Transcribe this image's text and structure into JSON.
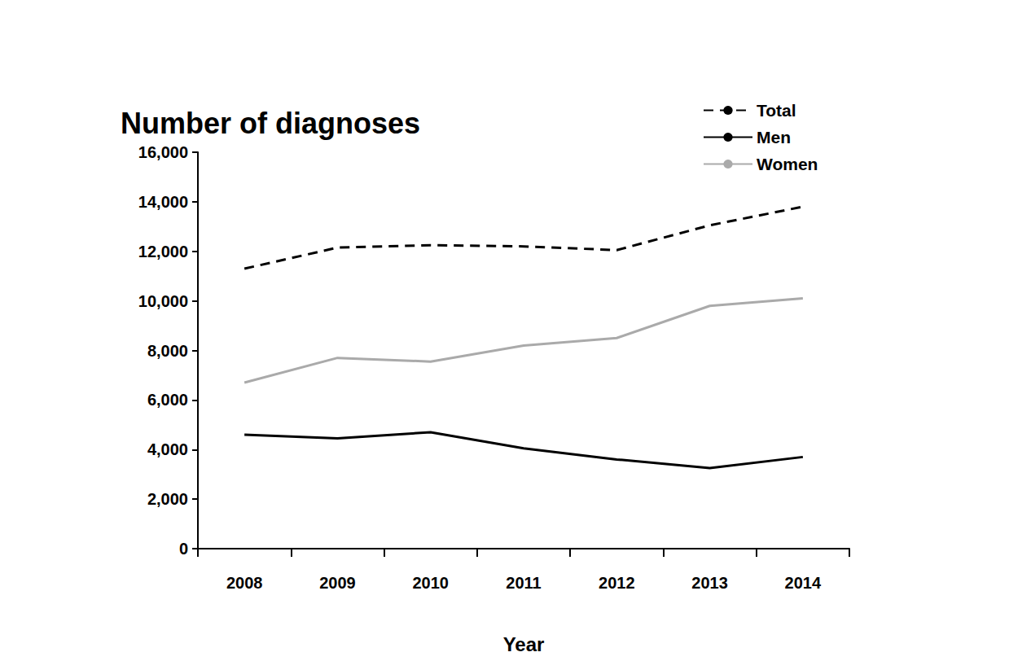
{
  "chart_data": {
    "type": "line",
    "ylabel": "Number of diagnoses",
    "xlabel": "Year",
    "categories": [
      "2008",
      "2009",
      "2010",
      "2011",
      "2012",
      "2013",
      "2014"
    ],
    "series": [
      {
        "name": "Total",
        "color": "#000000",
        "line_style": "dashed",
        "marker": "none",
        "values": [
          11300,
          12150,
          12250,
          12200,
          12050,
          13050,
          13800
        ]
      },
      {
        "name": "Men",
        "color": "#000000",
        "line_style": "solid",
        "marker": "none",
        "values": [
          4600,
          4450,
          4700,
          4050,
          3600,
          3250,
          3700
        ]
      },
      {
        "name": "Women",
        "color": "#aaaaaa",
        "line_style": "solid",
        "marker": "none",
        "values": [
          6700,
          7700,
          7550,
          8200,
          8500,
          9800,
          10100
        ]
      }
    ],
    "ylim": [
      0,
      16000
    ],
    "yticks": [
      0,
      {
        "value": 2000,
        "label": "2,000"
      },
      {
        "value": 4000,
        "label": "4,000"
      },
      {
        "value": 6000,
        "label": "6,000"
      },
      {
        "value": 8000,
        "label": "8,000"
      },
      {
        "value": 10000,
        "label": "10,000"
      },
      {
        "value": 12000,
        "label": "12,000"
      },
      {
        "value": 14000,
        "label": "14,000"
      },
      {
        "value": 16000,
        "label": "16,000"
      }
    ],
    "grid": false,
    "legend": "upper right"
  }
}
